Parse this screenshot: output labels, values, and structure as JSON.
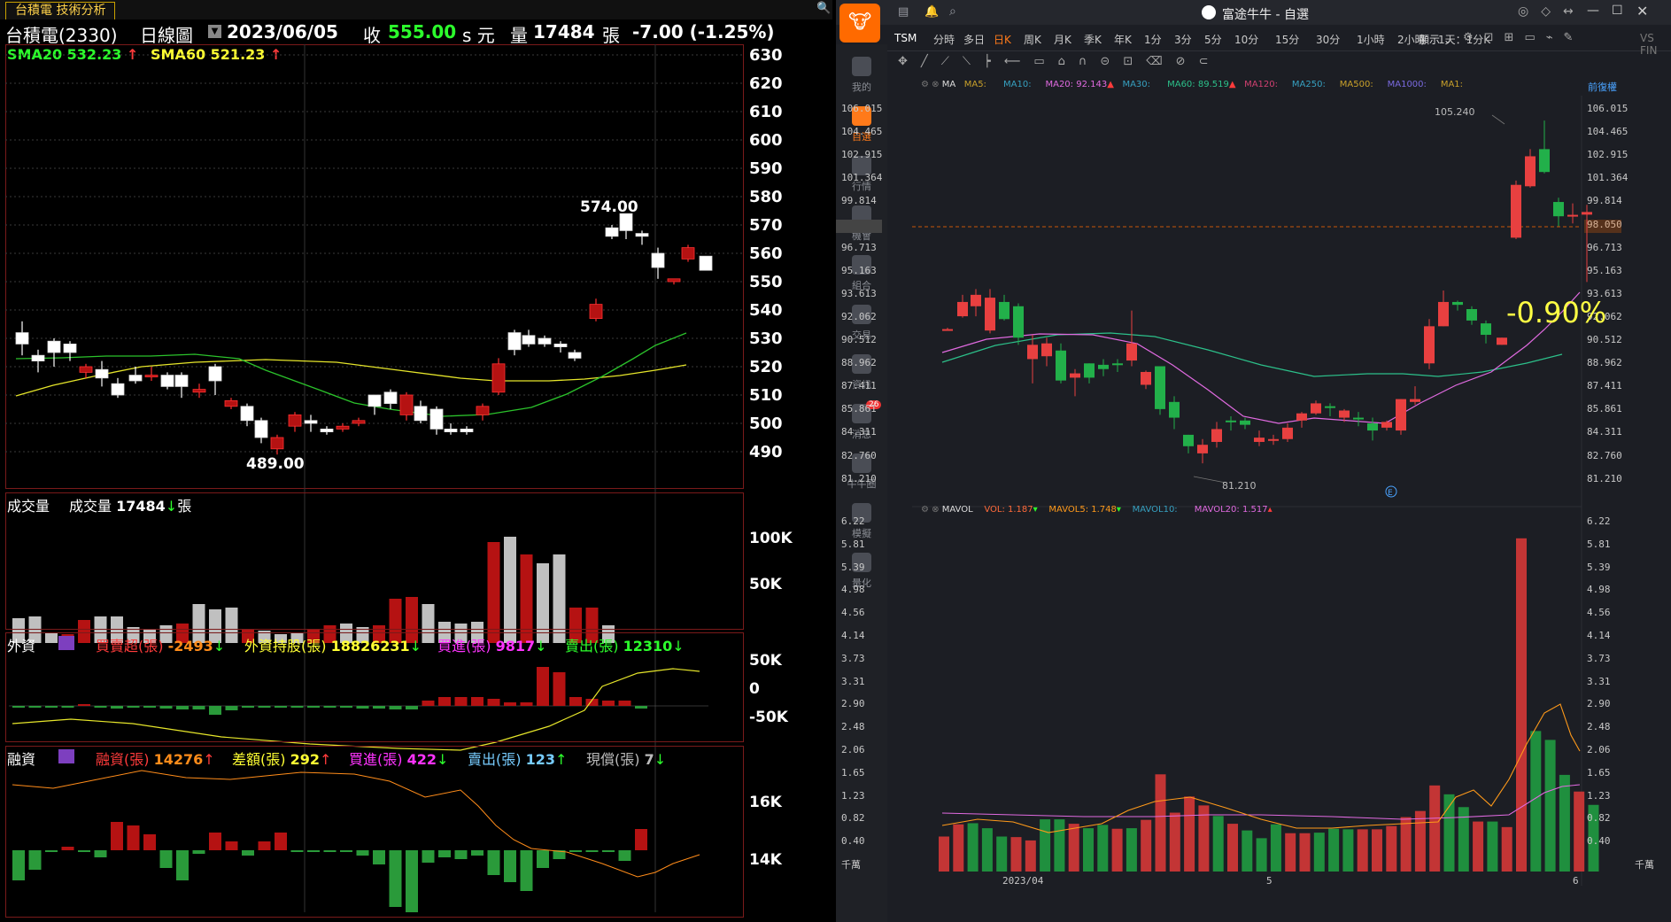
{
  "left": {
    "tab_title": "台積電 技術分析",
    "stock_name": "台積電(2330)",
    "period": "日線圖",
    "date": "2023/06/05",
    "close_label": "收",
    "close_value": "555.00",
    "close_unit": "s 元",
    "volume_label": "量",
    "volume_value": "17484",
    "volume_unit": "張",
    "change": "-7.00 (-1.25%)",
    "sma20_label": "SMA20 532.23",
    "sma60_label": "SMA60 521.23",
    "high_label": "574.00",
    "low_label": "489.00",
    "price_ticks": [
      "630",
      "620",
      "610",
      "600",
      "590",
      "580",
      "570",
      "560",
      "550",
      "540",
      "530",
      "520",
      "510",
      "500",
      "490"
    ],
    "volume_panel": {
      "title": "成交量",
      "label": "成交量",
      "value": "17484",
      "unit": "張",
      "ticks": [
        "100K",
        "50K"
      ]
    },
    "foreign_panel": {
      "title": "外資",
      "net_label": "買賣超(張)",
      "net_value": "-2493",
      "hold_label": "外資持股(張)",
      "hold_value": "18826231",
      "buy_label": "買進(張)",
      "buy_value": "9817",
      "sell_label": "賣出(張)",
      "sell_value": "12310",
      "ticks": [
        "50K",
        "0",
        "-50K"
      ]
    },
    "margin_panel": {
      "title": "融資",
      "bal_label": "融資(張)",
      "bal_value": "14276",
      "diff_label": "差額(張)",
      "diff_value": "292",
      "buy_label": "買進(張)",
      "buy_value": "422",
      "sell_label": "賣出(張)",
      "sell_value": "123",
      "repay_label": "現償(張)",
      "repay_value": "7",
      "ticks": [
        "16K",
        "14K"
      ]
    }
  },
  "right": {
    "window_title": "富途牛牛 - 自選",
    "symbol": "TSM",
    "timeframes": [
      "分時",
      "多日",
      "日K",
      "周K",
      "月K",
      "季K",
      "年K",
      "1分",
      "3分",
      "5分",
      "10分",
      "15分",
      "30分",
      "1小時",
      "2小時",
      "1天：1分K"
    ],
    "active_timeframe": "日K",
    "display_label": "顯示",
    "ma_bar": {
      "ma": "MA",
      "ma5": "MA5:",
      "ma10": "MA10:",
      "ma20": "MA20: 92.143",
      "ma30": "MA30:",
      "ma60": "MA60: 89.519",
      "ma120": "MA120:",
      "ma250": "MA250:",
      "ma500": "MA500:",
      "ma1000": "MA1000:",
      "ma1": "MA1:",
      "adjust": "前復權"
    },
    "price_ticks": [
      "106.015",
      "104.465",
      "102.915",
      "101.364",
      "99.814",
      "98.050",
      "96.713",
      "95.163",
      "93.613",
      "92.062",
      "90.512",
      "88.962",
      "87.411",
      "85.861",
      "84.311",
      "82.760",
      "81.210"
    ],
    "current_price": "98.050",
    "high_label": "105.240",
    "low_label": "81.210",
    "pct_change": "-0.90%",
    "vol_bar": {
      "name": "MAVOL",
      "vol": "VOL: 1.187",
      "mavol5": "MAVOL5: 1.748",
      "mavol10": "MAVOL10:",
      "mavol20": "MAVOL20: 1.517"
    },
    "vol_ticks": [
      "6.22",
      "5.81",
      "5.39",
      "4.98",
      "4.56",
      "4.14",
      "3.73",
      "3.31",
      "2.90",
      "2.48",
      "2.06",
      "1.65",
      "1.23",
      "0.82",
      "0.40"
    ],
    "vol_unit": "千萬",
    "x_labels": [
      "2023/04",
      "5",
      "6"
    ],
    "sidebar": [
      {
        "label": "我的"
      },
      {
        "label": "自選"
      },
      {
        "label": "行情"
      },
      {
        "label": "機會"
      },
      {
        "label": "組合"
      },
      {
        "label": "交易"
      },
      {
        "label": "資訊"
      },
      {
        "label": "消息",
        "badge": "26"
      },
      {
        "label": "牛牛圈"
      },
      {
        "label": "模擬"
      },
      {
        "label": "量化"
      }
    ],
    "ext_label": "VS FIN"
  },
  "colors": {
    "up": "#b51212",
    "down": "#2a9a3a",
    "white_candle": "#ffffff",
    "sma20": "#33cc33",
    "sma60": "#ffff33",
    "accent": "#ff6a00"
  }
}
